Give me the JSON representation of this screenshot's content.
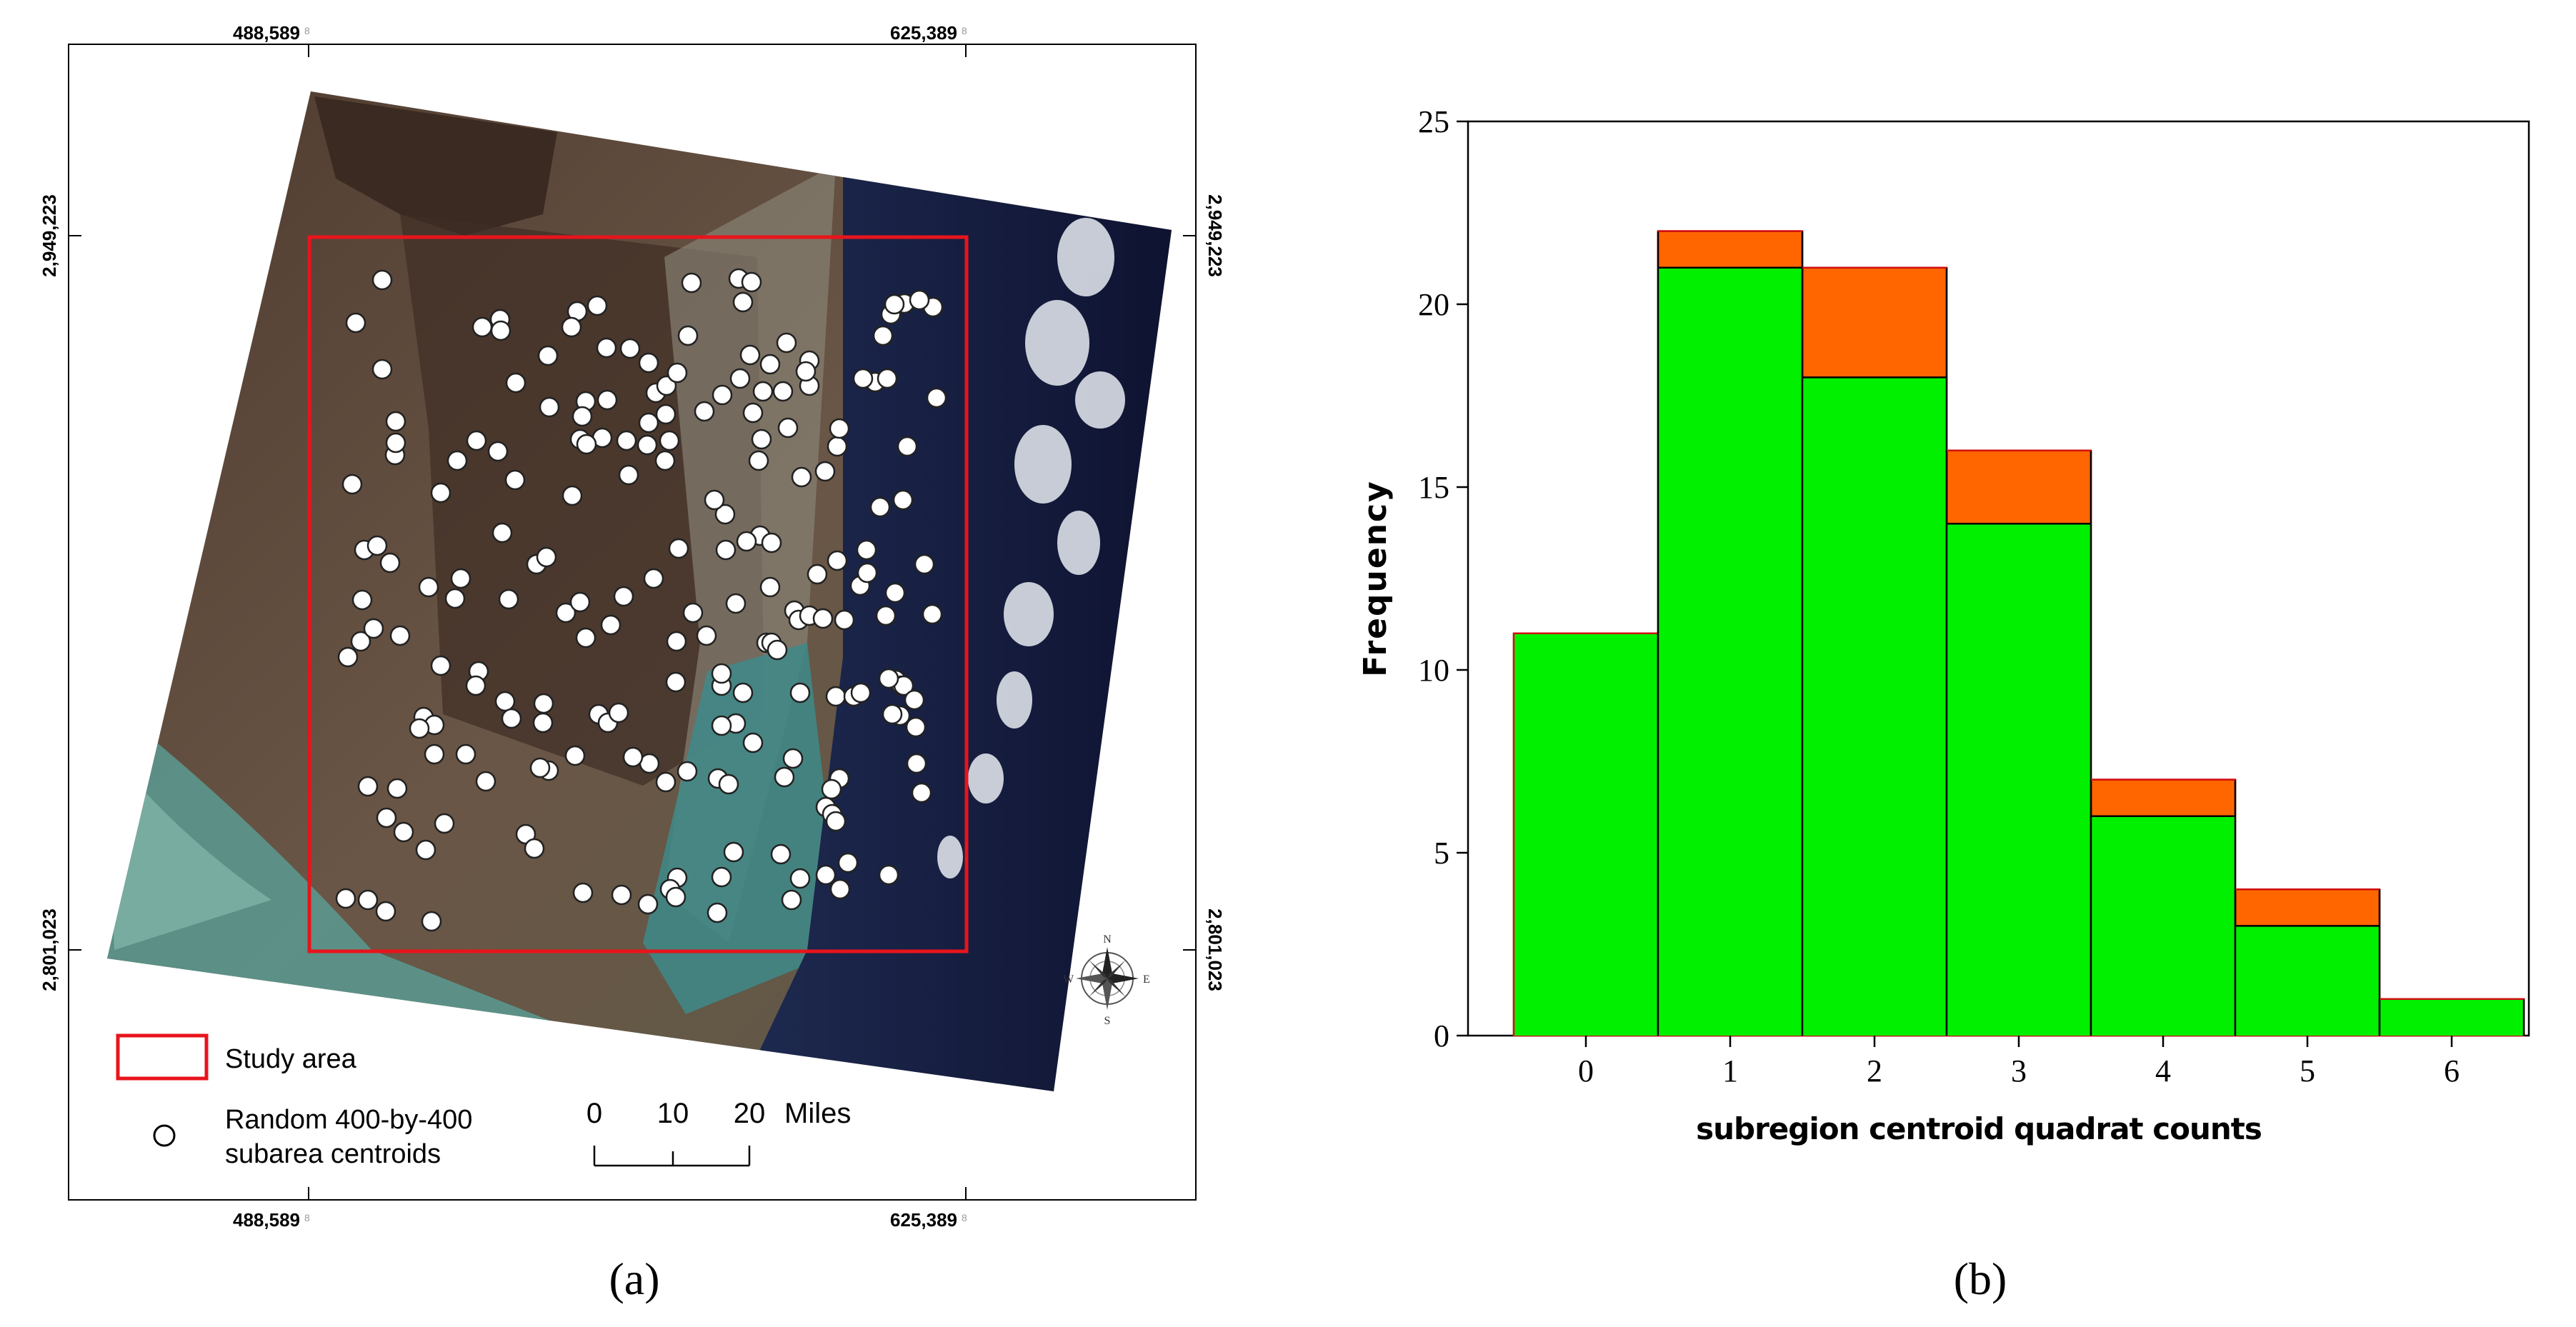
{
  "panel_a": {
    "label": "(a)",
    "coords": {
      "x_left": "488,589",
      "x_right": "625,389",
      "y_top": "2,949,223",
      "y_bottom": "2,801,023",
      "suffix": "8"
    },
    "legend": {
      "study_area": "Study area",
      "centroids_line1": "Random 400-by-400",
      "centroids_line2": "subarea centroids"
    },
    "scalebar": {
      "ticks": [
        "0",
        "10",
        "20"
      ],
      "unit": "Miles"
    },
    "compass": {
      "n": "N",
      "s": "S",
      "e": "E",
      "w": "W"
    },
    "colors": {
      "study_area": "#e8141c",
      "land": "#5a4636",
      "ocean": "#141a3c",
      "shallow_water": "#3e8a8a"
    }
  },
  "panel_b": {
    "label": "(b)",
    "colors": {
      "bar_primary": "#00f000",
      "bar_overlay": "#ff6600",
      "bar_outline": "#d01010"
    }
  },
  "chart_data": {
    "type": "bar",
    "title": "",
    "xlabel": "subregion centroid quadrat counts",
    "ylabel": "Frequency",
    "categories": [
      "0",
      "1",
      "2",
      "3",
      "4",
      "5",
      "6"
    ],
    "series": [
      {
        "name": "green",
        "values": [
          11,
          21,
          18,
          14,
          6,
          3,
          1
        ]
      },
      {
        "name": "orange",
        "values": [
          11,
          22,
          21,
          16,
          7,
          4,
          1
        ]
      }
    ],
    "ylim": [
      0,
      25
    ],
    "yticks": [
      "0",
      "5",
      "10",
      "15",
      "20",
      "25"
    ],
    "grid": false
  }
}
